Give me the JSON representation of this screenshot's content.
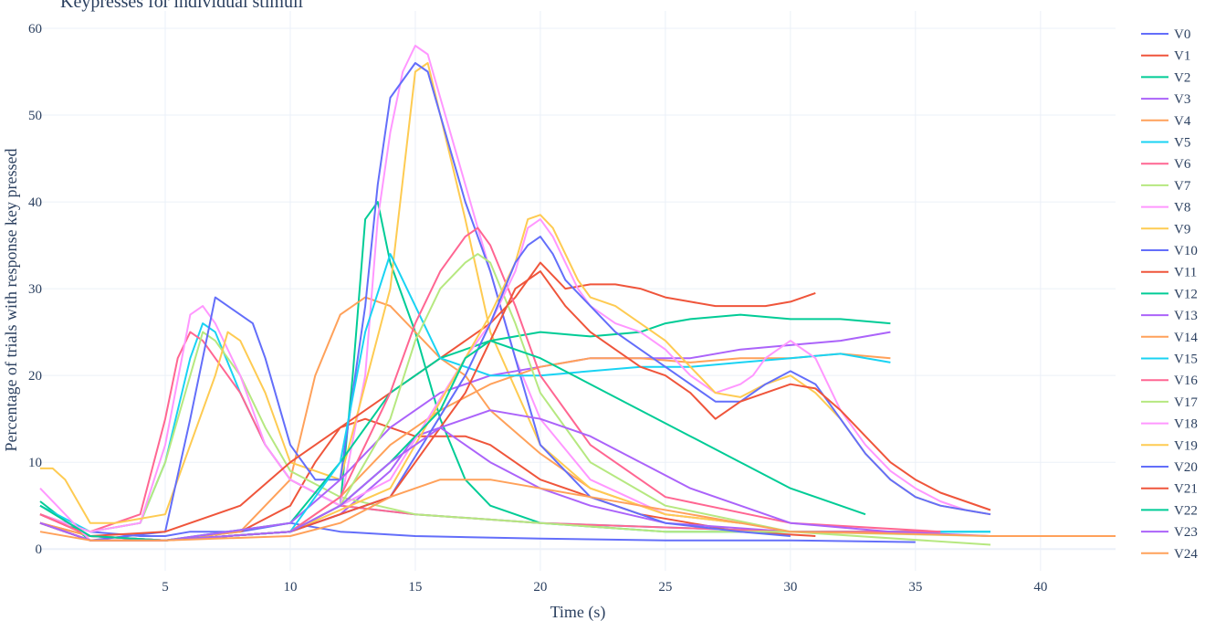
{
  "chart_data": {
    "type": "line",
    "title": "Keypresses for individual stimuli",
    "xlabel": "Time (s)",
    "ylabel": "Percentage of trials with response key pressed",
    "xlim": [
      0,
      43
    ],
    "ylim": [
      -2.5,
      62
    ],
    "x_ticks": [
      5,
      10,
      15,
      20,
      25,
      30,
      35,
      40
    ],
    "y_ticks": [
      0,
      10,
      20,
      30,
      40,
      50,
      60
    ],
    "grid": true,
    "legend_position": "right",
    "colors": [
      "#636efa",
      "#EF553B",
      "#00cc96",
      "#ab63fa",
      "#FFA15A",
      "#19d3f3",
      "#FF6692",
      "#B6E880",
      "#FF97FF",
      "#FECB52"
    ],
    "series": [
      {
        "name": "V0",
        "x": [
          0,
          2,
          4,
          5,
          6,
          7,
          8,
          9,
          10,
          12,
          15,
          20,
          25,
          30,
          35
        ],
        "y": [
          4,
          2,
          1.5,
          1.5,
          2,
          2,
          2,
          2.5,
          3,
          2,
          1.5,
          1.2,
          1,
          1,
          0.8
        ]
      },
      {
        "name": "V1",
        "x": [
          0,
          2,
          5,
          8,
          10,
          11,
          12,
          13,
          14,
          15,
          16,
          17,
          18,
          19,
          20,
          22,
          24,
          26,
          28,
          31
        ],
        "y": [
          3,
          1.5,
          1,
          2,
          5,
          10,
          14,
          15,
          14,
          13,
          13,
          13,
          12,
          10,
          8,
          6,
          4,
          3,
          2,
          1.5
        ]
      },
      {
        "name": "V2",
        "x": [
          0,
          2,
          5,
          10,
          12,
          12.5,
          13,
          13.5,
          14,
          15,
          16,
          17,
          18,
          20,
          25,
          30,
          38
        ],
        "y": [
          5.5,
          1,
          1,
          2,
          5,
          20,
          38,
          40,
          33,
          25,
          15,
          8,
          5,
          3,
          2,
          2,
          2
        ]
      },
      {
        "name": "V3",
        "x": [
          0,
          2,
          5,
          10,
          12,
          14,
          15,
          16,
          17,
          18,
          20,
          22,
          25,
          30,
          36
        ],
        "y": [
          4,
          1.5,
          1,
          2,
          4,
          9,
          13,
          14,
          12,
          10,
          7,
          5,
          3,
          2,
          2
        ]
      },
      {
        "name": "V4",
        "x": [
          0,
          2,
          5,
          8,
          10,
          11,
          12,
          13,
          14,
          15,
          16,
          17,
          18,
          20,
          22,
          25,
          28
        ],
        "y": [
          3,
          1.5,
          1,
          2,
          8,
          20,
          27,
          29,
          28,
          25,
          22,
          20,
          16,
          11,
          7,
          4,
          3
        ]
      },
      {
        "name": "V5",
        "x": [
          0,
          2,
          4,
          5,
          6,
          6.5,
          7,
          8,
          9,
          10,
          12,
          15,
          20,
          25,
          30,
          35,
          38
        ],
        "y": [
          5,
          2,
          3,
          10,
          22,
          26,
          25,
          18,
          12,
          8,
          5,
          4,
          3,
          2.5,
          2,
          2,
          2
        ]
      },
      {
        "name": "V6",
        "x": [
          0,
          2,
          4,
          5,
          5.5,
          6,
          6.5,
          7,
          8,
          9,
          10,
          12,
          15,
          20,
          25,
          30,
          36
        ],
        "y": [
          4,
          2,
          4,
          15,
          22,
          25,
          24,
          22,
          18,
          12,
          8,
          5,
          4,
          3,
          2.5,
          2,
          2
        ]
      },
      {
        "name": "V7",
        "x": [
          0,
          2,
          4,
          5,
          6,
          6.5,
          7,
          7.5,
          8,
          9,
          10,
          12,
          15,
          20,
          25,
          30,
          38
        ],
        "y": [
          4,
          2,
          3,
          10,
          20,
          25,
          24,
          22,
          20,
          14,
          9,
          6,
          4,
          3,
          2,
          2,
          1.5
        ]
      },
      {
        "name": "V8",
        "x": [
          0,
          2,
          4,
          5,
          6,
          6.5,
          7,
          8,
          9,
          10,
          12,
          13,
          13.5,
          14,
          14.5,
          15,
          15.5,
          16,
          17,
          18,
          19,
          20,
          22,
          25,
          28
        ],
        "y": [
          4,
          2,
          3,
          12,
          27,
          28,
          26,
          20,
          12,
          8,
          5,
          20,
          38,
          48,
          55,
          58,
          57,
          52,
          42,
          32,
          22,
          15,
          8,
          4,
          3
        ]
      },
      {
        "name": "V9",
        "x": [
          0,
          0.5,
          1,
          2,
          3,
          5,
          7,
          7.5,
          8,
          9,
          10,
          12,
          14,
          15,
          15.5,
          16,
          17,
          18,
          20,
          22,
          25,
          28
        ],
        "y": [
          9.3,
          9.3,
          8,
          3,
          3,
          4,
          20,
          25,
          24,
          18,
          10,
          8,
          30,
          55,
          56,
          50,
          38,
          25,
          12,
          7,
          4,
          3
        ]
      },
      {
        "name": "V10",
        "x": [
          0,
          2,
          5,
          6,
          7,
          7.5,
          8,
          8.5,
          9,
          10,
          11,
          12,
          13,
          13.5,
          14,
          14.5,
          15,
          15.5,
          16,
          17,
          18,
          19,
          20,
          22,
          25,
          28,
          30
        ],
        "y": [
          3,
          1,
          2,
          15,
          29,
          28,
          27,
          26,
          22,
          12,
          8,
          8,
          28,
          42,
          52,
          54,
          56,
          55,
          50,
          40,
          32,
          22,
          12,
          6,
          3,
          2,
          1.5
        ]
      },
      {
        "name": "V11",
        "x": [
          0,
          2,
          5,
          8,
          10,
          12,
          14,
          16,
          18,
          19,
          19.5,
          20,
          21,
          22,
          23,
          24,
          25,
          26,
          27,
          28,
          29,
          30,
          31
        ],
        "y": [
          4,
          1.5,
          2,
          5,
          10,
          14,
          18,
          22,
          26,
          29,
          31,
          33,
          30,
          30.5,
          30.5,
          30,
          29,
          28.5,
          28,
          28,
          28,
          28.5,
          29.5
        ]
      },
      {
        "name": "V12",
        "x": [
          0,
          2,
          5,
          10,
          12,
          14,
          16,
          18,
          20,
          22,
          24,
          25,
          26,
          28,
          30,
          32,
          34
        ],
        "y": [
          3,
          1,
          1,
          3,
          10,
          18,
          22,
          24,
          25,
          24.5,
          25,
          26,
          26.5,
          27,
          26.5,
          26.5,
          26
        ]
      },
      {
        "name": "V13",
        "x": [
          0,
          2,
          5,
          10,
          12,
          14,
          16,
          18,
          20,
          22,
          24,
          26,
          28,
          30,
          32,
          34
        ],
        "y": [
          3,
          1,
          1,
          3,
          8,
          14,
          18,
          20,
          21,
          22,
          22,
          22,
          23,
          23.5,
          24,
          25
        ]
      },
      {
        "name": "V14",
        "x": [
          0,
          2,
          5,
          10,
          12,
          14,
          16,
          18,
          20,
          22,
          24,
          26,
          28,
          30,
          32,
          34
        ],
        "y": [
          3,
          1,
          1,
          2,
          6,
          12,
          16,
          19,
          21,
          22,
          22,
          21.5,
          22,
          22,
          22.5,
          22
        ]
      },
      {
        "name": "V15",
        "x": [
          0,
          2,
          5,
          10,
          12,
          13,
          14,
          15,
          16,
          18,
          20,
          22,
          24,
          26,
          28,
          30,
          32,
          34
        ],
        "y": [
          3,
          1,
          1,
          2,
          10,
          25,
          34,
          28,
          22,
          20,
          20,
          20.5,
          21,
          21,
          21.5,
          22,
          22.5,
          21.5
        ]
      },
      {
        "name": "V16",
        "x": [
          0,
          2,
          5,
          10,
          12,
          14,
          15,
          16,
          17,
          17.5,
          18,
          19,
          20,
          22,
          25,
          30,
          36
        ],
        "y": [
          4,
          1.5,
          1,
          2,
          6,
          18,
          26,
          32,
          36,
          37,
          35,
          28,
          20,
          12,
          6,
          3,
          2
        ]
      },
      {
        "name": "V17",
        "x": [
          0,
          2,
          5,
          10,
          12,
          14,
          15,
          16,
          17,
          17.5,
          18,
          19,
          20,
          22,
          25,
          30,
          38
        ],
        "y": [
          3,
          1,
          1,
          2,
          5,
          15,
          24,
          30,
          33,
          34,
          33,
          26,
          18,
          10,
          5,
          2,
          0.5
        ]
      },
      {
        "name": "V18",
        "x": [
          0,
          2,
          5,
          10,
          14,
          17,
          18,
          19,
          19.5,
          20,
          20.5,
          21,
          21.5,
          22,
          23,
          24,
          25,
          26,
          27,
          28,
          28.5,
          29,
          30,
          31,
          32,
          33,
          34,
          35,
          36,
          37,
          38
        ],
        "y": [
          7,
          1,
          1,
          2,
          8,
          22,
          26,
          32,
          37,
          38,
          36,
          33,
          30,
          28,
          26,
          25,
          23,
          20,
          18,
          19,
          20,
          22,
          24,
          22,
          16,
          12,
          9,
          7,
          5.5,
          4.5,
          4
        ]
      },
      {
        "name": "V19",
        "x": [
          0,
          2,
          5,
          10,
          14,
          17,
          18,
          19,
          19.5,
          20,
          20.5,
          21,
          21.5,
          22,
          23,
          24,
          25,
          26,
          27,
          28,
          29,
          30,
          31,
          32,
          33,
          34,
          35,
          36,
          37,
          38
        ],
        "y": [
          3,
          1,
          1,
          2,
          7,
          22,
          27,
          33,
          38,
          38.5,
          37,
          34,
          31,
          29,
          28,
          26,
          24,
          21,
          18,
          17.5,
          19,
          20,
          18,
          15,
          11,
          8,
          6,
          5,
          4.5,
          4
        ]
      },
      {
        "name": "V20",
        "x": [
          0,
          2,
          5,
          10,
          14,
          17,
          18,
          19,
          19.5,
          20,
          20.5,
          21,
          22,
          23,
          24,
          25,
          26,
          27,
          28,
          29,
          30,
          31,
          32,
          33,
          34,
          35,
          36,
          37,
          38
        ],
        "y": [
          3,
          1,
          1,
          2,
          6,
          20,
          26,
          33,
          35,
          36,
          34,
          31,
          28,
          25,
          23,
          21,
          19,
          17,
          17,
          19,
          20.5,
          19,
          15,
          11,
          8,
          6,
          5,
          4.5,
          4
        ]
      },
      {
        "name": "V21",
        "x": [
          0,
          2,
          5,
          10,
          14,
          17,
          18,
          19,
          20,
          21,
          22,
          23,
          24,
          25,
          26,
          27,
          28,
          29,
          30,
          31,
          32,
          33,
          34,
          35,
          36,
          37,
          38
        ],
        "y": [
          3,
          1,
          1,
          2,
          6,
          18,
          24,
          30,
          32,
          28,
          25,
          23,
          21,
          20,
          18,
          15,
          17,
          18,
          19,
          18.5,
          16,
          13,
          10,
          8,
          6.5,
          5.5,
          4.5
        ]
      },
      {
        "name": "V22",
        "x": [
          0,
          2,
          5,
          10,
          12,
          14,
          16,
          17,
          18,
          20,
          22,
          24,
          26,
          28,
          30,
          32,
          33
        ],
        "y": [
          5,
          1.5,
          1,
          2,
          5,
          10,
          16,
          22,
          24,
          22,
          19,
          16,
          13,
          10,
          7,
          5,
          4
        ]
      },
      {
        "name": "V23",
        "x": [
          0,
          2,
          5,
          10,
          12,
          14,
          16,
          18,
          20,
          22,
          24,
          26,
          28,
          30,
          32,
          34,
          38
        ],
        "y": [
          3,
          1,
          1,
          2,
          5,
          10,
          14,
          16,
          15,
          13,
          10,
          7,
          5,
          3,
          2.5,
          2,
          1.5
        ]
      },
      {
        "name": "V24",
        "x": [
          0,
          2,
          5,
          10,
          12,
          14,
          16,
          18,
          20,
          22,
          24,
          26,
          28,
          30,
          34,
          38,
          43
        ],
        "y": [
          2,
          1,
          1,
          1.5,
          3,
          6,
          8,
          8,
          7,
          6,
          5,
          4,
          3,
          2,
          1.8,
          1.5,
          1.5
        ]
      }
    ],
    "legend_entries": [
      "V0",
      "V1",
      "V2",
      "V3",
      "V4",
      "V5",
      "V6",
      "V7",
      "V8",
      "V9",
      "V10",
      "V11",
      "V12",
      "V13",
      "V14",
      "V15",
      "V16",
      "V17",
      "V18",
      "V19",
      "V20",
      "V21",
      "V22",
      "V23",
      "V24"
    ]
  }
}
